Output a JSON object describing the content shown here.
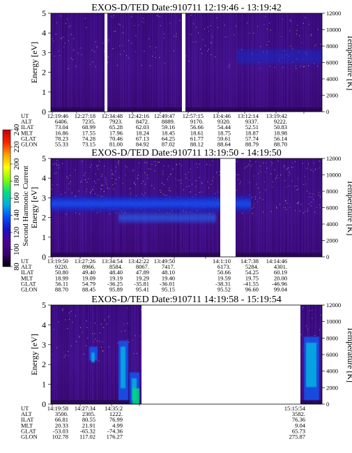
{
  "chart_data": [
    {
      "type": "heatmap",
      "title": "EXOS-D/TED   Date:910711   12:19:46 - 13:19:42",
      "ylabel": "Energy [eV]",
      "ylabel_right": "Temperature [K]",
      "ylim": [
        0,
        5
      ],
      "ylim_right": [
        0,
        12000
      ],
      "yticks": [
        "0",
        "1",
        "2",
        "3",
        "4",
        "5"
      ],
      "yticks_right": [
        "0",
        "2000",
        "4000",
        "6000",
        "8000",
        "10000",
        "12000"
      ],
      "data_gaps": [
        "12:27:18-12:28:00",
        "12:49:10-12:49:47"
      ],
      "signal_band": {
        "energy_center_ev": 2.8,
        "starts_at": "13:04:46"
      },
      "orbit_rows": [
        {
          "label": "UT",
          "values": [
            "12:19:46",
            "12:27:18",
            "12:34:48",
            "12:42:16",
            "12:49:47",
            "12:57:15",
            "13:4:46",
            "13:12:14",
            "13:19:42"
          ]
        },
        {
          "label": "ALT",
          "values": [
            "6406.",
            "7235.",
            "7923.",
            "8472.",
            "8889.",
            "9170.",
            "9320.",
            "9337.",
            "9222."
          ]
        },
        {
          "label": "ILAT",
          "values": [
            "73.04",
            "68.99",
            "65.28",
            "62.03",
            "59.16",
            "56.66",
            "54.44",
            "52.51",
            "50.83"
          ]
        },
        {
          "label": "MLT",
          "values": [
            "16.86",
            "17.55",
            "17.96",
            "18.24",
            "18.45",
            "18.61",
            "18.75",
            "18.87",
            "18.98"
          ]
        },
        {
          "label": "GLAT",
          "values": [
            "78.23",
            "74.28",
            "70.46",
            "67.13",
            "64.25",
            "61.77",
            "59.61",
            "57.74",
            "56.14"
          ]
        },
        {
          "label": "GLON",
          "values": [
            "55.33",
            "73.15",
            "81.00",
            "84.92",
            "87.02",
            "88.12",
            "88.64",
            "88.79",
            "88.70"
          ]
        }
      ]
    },
    {
      "type": "heatmap",
      "title": "EXOS-D/TED   Date:910711   13:19:50 - 14:19:50",
      "ylabel": "Energy [eV]",
      "ylabel_right": "Temperature [K]",
      "ylim": [
        0,
        5
      ],
      "ylim_right": [
        0,
        12000
      ],
      "yticks": [
        "0",
        "1",
        "2",
        "3",
        "4",
        "5"
      ],
      "yticks_right": [
        "0",
        "2000",
        "4000",
        "6000",
        "8000",
        "10000",
        "12000"
      ],
      "data_gaps": [
        "13:57:20-14:01:10"
      ],
      "signal_band": {
        "energy_center_ev": 2.7,
        "starts_at": "13:19:50"
      },
      "orbit_rows": [
        {
          "label": "UT",
          "values": [
            "13:19:50",
            "13:27:26",
            "13:34:54",
            "13:42:22",
            "13:49:50",
            "",
            "14:1:10",
            "14:7:38",
            "14:14:46"
          ]
        },
        {
          "label": "ALT",
          "values": [
            "9220.",
            "8966.",
            "8584.",
            "8067.",
            "7417.",
            "",
            "6173.",
            "5284.",
            "4301."
          ]
        },
        {
          "label": "ILAT",
          "values": [
            "50.80",
            "49.40",
            "48.40",
            "47.89",
            "48.10",
            "",
            "50.66",
            "54.25",
            "60.19"
          ]
        },
        {
          "label": "MLT",
          "values": [
            "18.99",
            "19.09",
            "19.19",
            "19.29",
            "19.40",
            "",
            "19.59",
            "19.75",
            "20.00"
          ]
        },
        {
          "label": "GLAT",
          "values": [
            "56.11",
            "54.79",
            "-36.25",
            "-35.81",
            "-36.01",
            "",
            "-38.31",
            "-41.55",
            "-46.96"
          ]
        },
        {
          "label": "GLON",
          "values": [
            "88.70",
            "88.45",
            "95.89",
            "95.41",
            "95.15",
            "",
            "95.52",
            "96.60",
            "99.04"
          ]
        }
      ]
    },
    {
      "type": "heatmap",
      "title": "EXOS-D/TED   Date:910711   14:19:58 - 15:19:54",
      "ylabel": "Energy [eV]",
      "ylabel_right": "Temperature [K]",
      "ylim": [
        0,
        5
      ],
      "ylim_right": [
        0,
        12000
      ],
      "yticks": [
        "0",
        "1",
        "2",
        "3",
        "4",
        "5"
      ],
      "yticks_right": [
        "0",
        "2000",
        "4000",
        "6000",
        "8000",
        "10000",
        "12000"
      ],
      "data_gaps": [
        "14:37:50-15:15:54"
      ],
      "orbit_rows": [
        {
          "label": "UT",
          "values": [
            "14:19:58",
            "14:27:34",
            "14:35:2",
            "15:15:54"
          ]
        },
        {
          "label": "ALT",
          "values": [
            "3500.",
            "2305.",
            "1222.",
            "3582."
          ]
        },
        {
          "label": "ILAT",
          "values": [
            "66.81",
            "80.55",
            "76.99",
            "76.36"
          ]
        },
        {
          "label": "MLT",
          "values": [
            "20.33",
            "21.91",
            "4.99",
            "9.04"
          ]
        },
        {
          "label": "GLAT",
          "values": [
            "-53.03",
            "-65.32",
            "-74.36",
            "65.73"
          ]
        },
        {
          "label": "GLON",
          "values": [
            "102.78",
            "117.02",
            "176.27",
            "275.87"
          ]
        }
      ]
    }
  ],
  "colorbar": {
    "label": "Second Harmonic Current",
    "range": [
      80,
      240
    ],
    "ticks": [
      "80",
      "100",
      "120",
      "140",
      "160",
      "180",
      "200",
      "220",
      "240"
    ],
    "colors": [
      "#000000",
      "#3a0070",
      "#4b0090",
      "#1a10c8",
      "#0050ff",
      "#00b0e0",
      "#00e080",
      "#80ff00",
      "#ffff00",
      "#ffa000",
      "#ff2000",
      "#c80000"
    ]
  }
}
